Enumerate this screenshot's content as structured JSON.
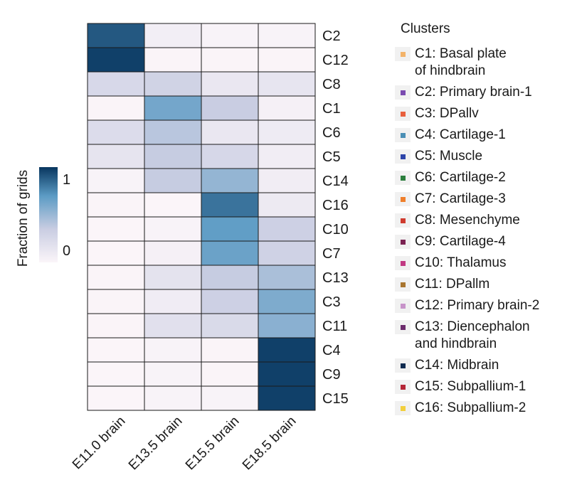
{
  "chart_data": {
    "type": "heatmap",
    "title": "",
    "xlabel": "",
    "ylabel": "",
    "columns": [
      "E11.0 brain",
      "E13.5 brain",
      "E15.5 brain",
      "E18.5 brain"
    ],
    "rows": [
      "C2",
      "C12",
      "C8",
      "C1",
      "C6",
      "C5",
      "C14",
      "C16",
      "C10",
      "C7",
      "C13",
      "C3",
      "C11",
      "C4",
      "C9",
      "C15"
    ],
    "values": [
      [
        0.9,
        0.06,
        0.02,
        0.02
      ],
      [
        0.97,
        0.01,
        0.01,
        0.01
      ],
      [
        0.25,
        0.3,
        0.12,
        0.14
      ],
      [
        0.01,
        0.62,
        0.35,
        0.04
      ],
      [
        0.22,
        0.4,
        0.12,
        0.09
      ],
      [
        0.15,
        0.36,
        0.26,
        0.07
      ],
      [
        0.02,
        0.36,
        0.52,
        0.07
      ],
      [
        0.01,
        0.0,
        0.82,
        0.1
      ],
      [
        0.0,
        0.02,
        0.68,
        0.32
      ],
      [
        0.0,
        0.04,
        0.65,
        0.31
      ],
      [
        0.01,
        0.16,
        0.36,
        0.45
      ],
      [
        0.01,
        0.08,
        0.32,
        0.59
      ],
      [
        0.01,
        0.18,
        0.24,
        0.55
      ],
      [
        0.0,
        0.02,
        0.01,
        0.97
      ],
      [
        0.0,
        0.02,
        0.01,
        0.97
      ],
      [
        0.0,
        0.02,
        0.02,
        0.97
      ]
    ],
    "colorbar": {
      "label": "Fraction of grids",
      "min": 0,
      "max": 1,
      "ticks": [
        "0",
        "1"
      ],
      "colors": [
        "#fbf5f9",
        "#c9cde2",
        "#5b9bc4",
        "#08365f"
      ]
    }
  },
  "legend": {
    "title": "Clusters",
    "items": [
      {
        "label": "C1: Basal plate\n      of hindbrain",
        "color": "#f3b36a"
      },
      {
        "label": "C2: Primary brain-1",
        "color": "#7a4bb0"
      },
      {
        "label": "C3: DPallv",
        "color": "#e8603e"
      },
      {
        "label": "C4: Cartilage-1",
        "color": "#4b8fb5"
      },
      {
        "label": "C5: Muscle",
        "color": "#2c43a8"
      },
      {
        "label": "C6: Cartilage-2",
        "color": "#2a7d3c"
      },
      {
        "label": "C7: Cartilage-3",
        "color": "#ef7f2b"
      },
      {
        "label": "C8: Mesenchyme",
        "color": "#cf3b2f"
      },
      {
        "label": "C9: Cartilage-4",
        "color": "#7b2352"
      },
      {
        "label": "C10: Thalamus",
        "color": "#c13a83"
      },
      {
        "label": "C11: DPallm",
        "color": "#a8752f"
      },
      {
        "label": "C12: Primary brain-2",
        "color": "#c793c9"
      },
      {
        "label": "C13: Diencephalon\n      and hindbrain",
        "color": "#6b2a6b"
      },
      {
        "label": "C14: Midbrain",
        "color": "#0e2a4f"
      },
      {
        "label": "C15: Subpallium-1",
        "color": "#b42636"
      },
      {
        "label": "C16: Subpallium-2",
        "color": "#f2cf3d"
      }
    ]
  }
}
